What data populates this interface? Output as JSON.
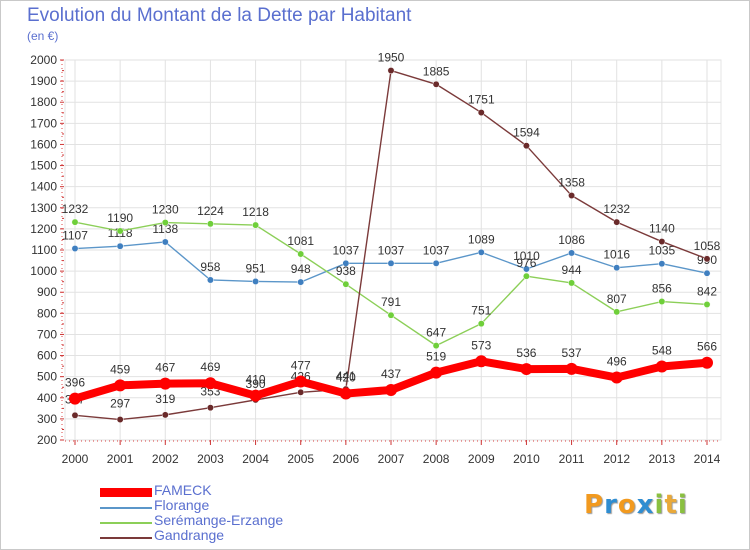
{
  "title": "Evolution du Montant de la Dette par Habitant",
  "subtitle": "(en €)",
  "logo": {
    "letters": [
      "P",
      "r",
      "o",
      "x",
      "i",
      "t",
      "i"
    ],
    "colors": [
      "#f29a1f",
      "#2f8dd1",
      "#f29a1f",
      "#2f8dd1",
      "#8ac040",
      "#e9a93a",
      "#8ac040"
    ]
  },
  "chart_data": {
    "type": "line",
    "x": [
      2000,
      2001,
      2002,
      2003,
      2004,
      2005,
      2006,
      2007,
      2008,
      2009,
      2010,
      2011,
      2012,
      2013,
      2014
    ],
    "ylim": [
      200,
      2000
    ],
    "yticks": [
      200,
      300,
      400,
      500,
      600,
      700,
      800,
      900,
      1000,
      1100,
      1200,
      1300,
      1400,
      1500,
      1600,
      1700,
      1800,
      1900,
      2000
    ],
    "grid": true,
    "legend_position": "bottom-left",
    "series": [
      {
        "name": "Florange",
        "color": "#5b96c9",
        "values": [
          1107,
          1118,
          1138,
          958,
          951,
          948,
          1037,
          1037,
          1037,
          1089,
          1010,
          1086,
          1016,
          1035,
          990
        ]
      },
      {
        "name": "Serémange-Erzange",
        "color": "#8ccf58",
        "values": [
          1232,
          1190,
          1230,
          1224,
          1218,
          1081,
          938,
          791,
          647,
          751,
          976,
          944,
          807,
          856,
          842
        ]
      },
      {
        "name": "Gandrange",
        "color": "#7b3a3a",
        "values": [
          317,
          297,
          319,
          353,
          390,
          426,
          441,
          1950,
          1885,
          1751,
          1594,
          1358,
          1232,
          1140,
          1058
        ]
      },
      {
        "name": "FAMECK",
        "color": "#ff0000",
        "values": [
          396,
          459,
          467,
          469,
          410,
          477,
          420,
          437,
          519,
          573,
          536,
          537,
          496,
          548,
          566
        ]
      }
    ]
  }
}
